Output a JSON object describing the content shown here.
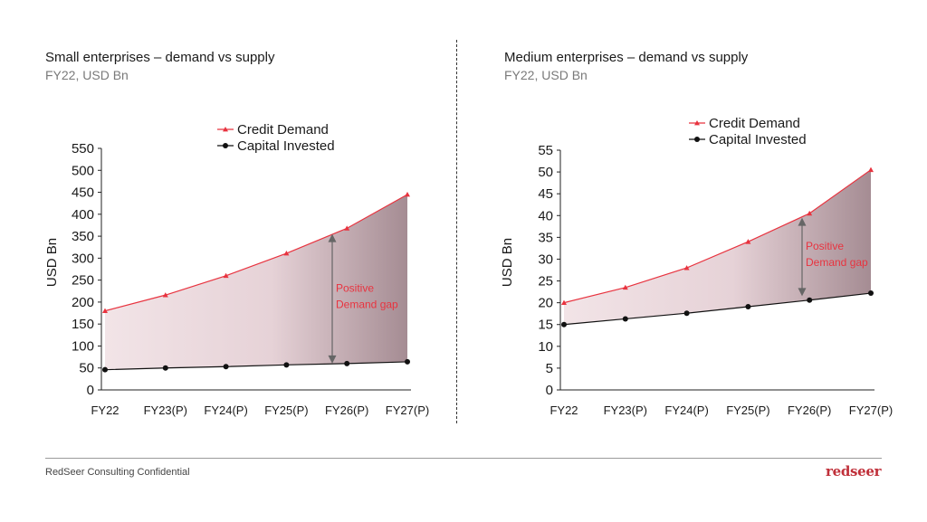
{
  "footer": {
    "confidential": "RedSeer Consulting Confidential",
    "logo": "redseer"
  },
  "colors": {
    "demand": "#e8333f",
    "supply": "#111111",
    "gap_label": "#e8333f",
    "fill_light": "#f2e4e7",
    "fill_dark": "#a58c93"
  },
  "chart_data": [
    {
      "type": "line",
      "title": "Small enterprises – demand vs supply",
      "subtitle": "FY22, USD Bn",
      "ylabel": "USD Bn",
      "categories": [
        "FY22",
        "FY23(P)",
        "FY24(P)",
        "FY25(P)",
        "FY26(P)",
        "FY27(P)"
      ],
      "ylim": [
        0,
        550
      ],
      "yticks": [
        0,
        50,
        100,
        150,
        200,
        250,
        300,
        350,
        400,
        450,
        500,
        550
      ],
      "series": [
        {
          "name": "Credit Demand",
          "values": [
            180,
            216,
            260,
            311,
            368,
            445
          ]
        },
        {
          "name": "Capital Invested",
          "values": [
            46,
            50,
            53,
            57,
            60,
            64
          ]
        }
      ],
      "legend_position": "top-right",
      "annotation": {
        "text": [
          "Positive",
          "Demand gap"
        ],
        "category": "FY26(P)",
        "from": 355,
        "to": 60
      }
    },
    {
      "type": "line",
      "title": "Medium enterprises – demand vs supply",
      "subtitle": "FY22, USD Bn",
      "ylabel": "USD Bn",
      "categories": [
        "FY22",
        "FY23(P)",
        "FY24(P)",
        "FY25(P)",
        "FY26(P)",
        "FY27(P)"
      ],
      "ylim": [
        0,
        55
      ],
      "yticks": [
        0,
        5,
        10,
        15,
        20,
        25,
        30,
        35,
        40,
        45,
        50,
        55
      ],
      "series": [
        {
          "name": "Credit Demand",
          "values": [
            20,
            23.5,
            28,
            34,
            40.5,
            50.5
          ]
        },
        {
          "name": "Capital Invested",
          "values": [
            15,
            16.3,
            17.6,
            19.1,
            20.6,
            22.2
          ]
        }
      ],
      "legend_position": "top-right",
      "annotation": {
        "text": [
          "Positive",
          "Demand gap"
        ],
        "category": "FY26(P)",
        "from": 39.5,
        "to": 21.5
      }
    }
  ]
}
